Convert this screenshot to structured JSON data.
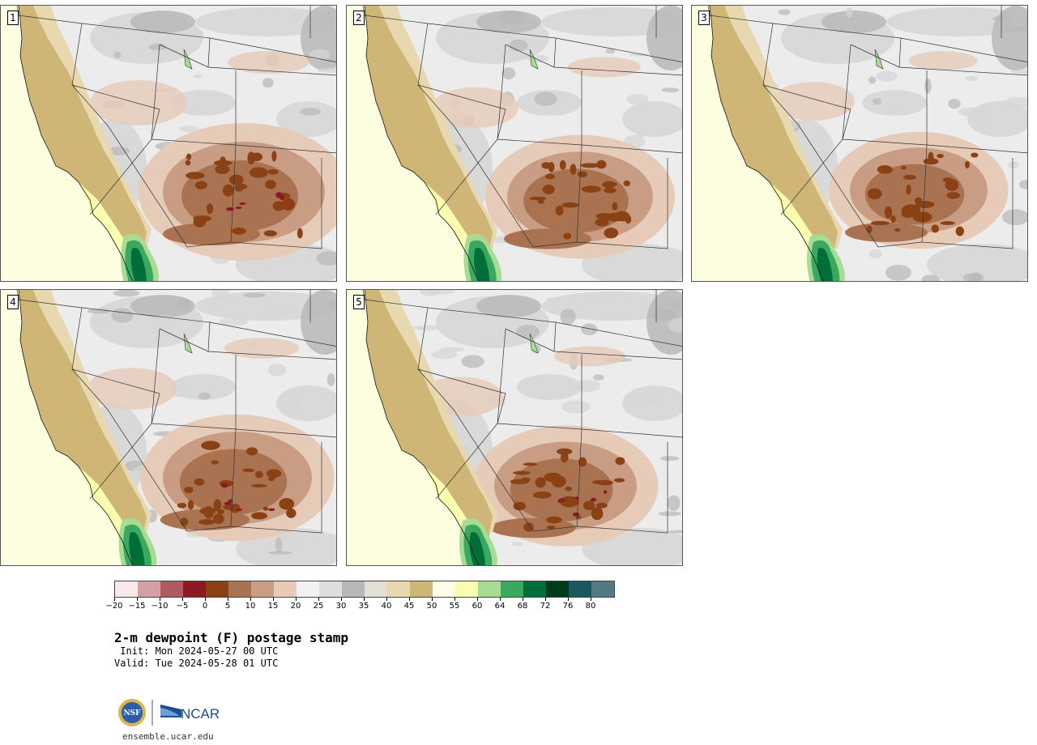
{
  "title": "2-m dewpoint (F) postage stamp",
  "init_text": " Init: Mon 2024-05-27 00 UTC",
  "valid_text": "Valid: Tue 2024-05-28 01 UTC",
  "website": "ensemble.ucar.edu",
  "logos": {
    "left": "NSF",
    "right": "NCAR"
  },
  "panels": [
    {
      "label": "1"
    },
    {
      "label": "2"
    },
    {
      "label": "3"
    },
    {
      "label": "4"
    },
    {
      "label": "5"
    }
  ],
  "colorbar": {
    "ticks": [
      "−20",
      "−15",
      "−10",
      "−5",
      "0",
      "5",
      "10",
      "15",
      "20",
      "25",
      "30",
      "35",
      "40",
      "45",
      "50",
      "55",
      "60",
      "64",
      "68",
      "72",
      "76",
      "80"
    ],
    "colors": [
      "#f7e9ea",
      "#d4a0a4",
      "#b15a64",
      "#8b1a24",
      "#8a4214",
      "#a97250",
      "#c89d83",
      "#e6cbb9",
      "#f2f2f2",
      "#dedede",
      "#b8b8b8",
      "#e2e0d2",
      "#e8d8b0",
      "#cfb677",
      "#fefee8",
      "#f9fdb0",
      "#a8dc94",
      "#3aa85e",
      "#006e38",
      "#003c1c",
      "#1a5860",
      "#537a80"
    ]
  },
  "map_colors": {
    "ocean": "#fdfde0",
    "land": "#ececec",
    "gray_mid": "#d6d6d6",
    "gray_dark": "#b8b8b8",
    "tan_light": "#e6cbb9",
    "tan": "#c89d83",
    "brown": "#a97250",
    "brown_dark": "#8a4214",
    "red_dark": "#8b1a24",
    "coast_gold": "#cfb677",
    "coast_light": "#e8d8b0",
    "coast_yellow": "#f9fdb0",
    "green_light": "#a8dc94",
    "green": "#3aa85e",
    "green_dark": "#006e38",
    "boundary": "#333333"
  }
}
